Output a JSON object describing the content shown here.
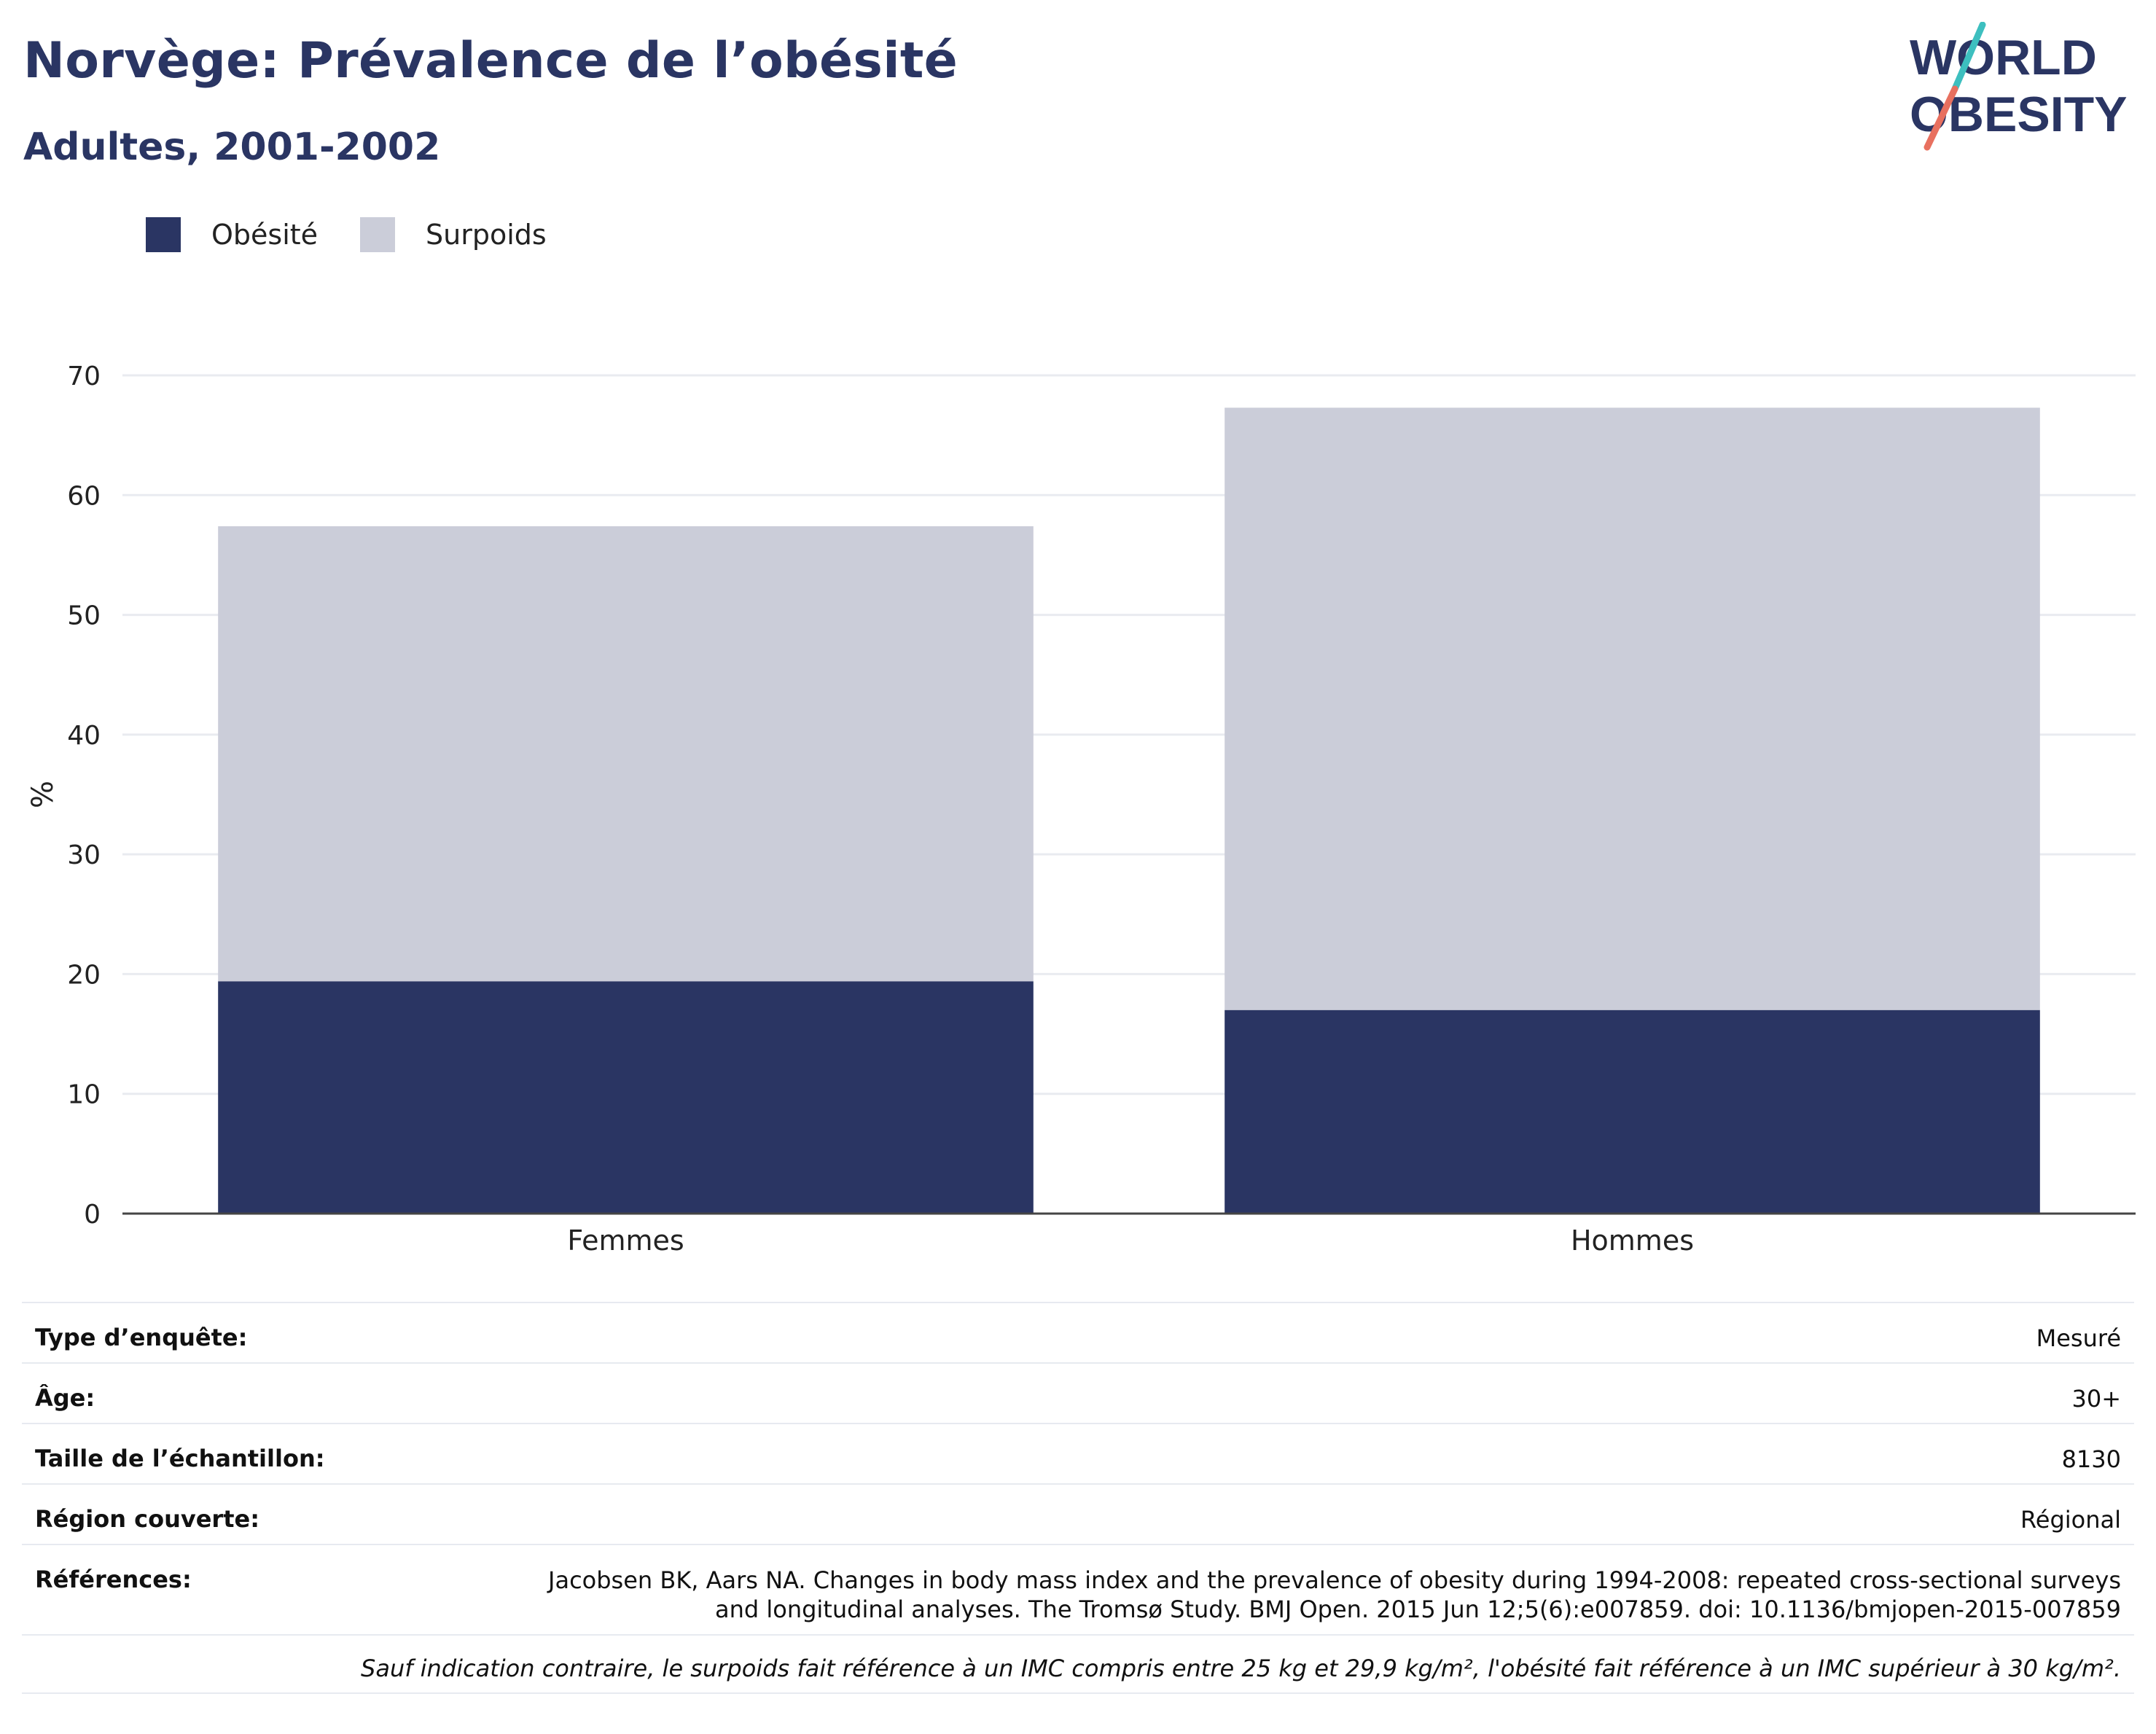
{
  "header": {
    "title": "Norvège: Prévalence de l’obésité",
    "subtitle": "Adultes, 2001-2002"
  },
  "logo": {
    "line1": "WORLD",
    "line2": "OBESITY",
    "colors": {
      "text": "#2a3563",
      "slash_top": "#3dbfbf",
      "slash_bottom": "#e8705f"
    }
  },
  "legend": [
    {
      "label": "Obésité",
      "color": "#2a3563"
    },
    {
      "label": "Surpoids",
      "color": "#cbcdd9"
    }
  ],
  "chart_data": {
    "type": "bar",
    "stacked": true,
    "categories": [
      "Femmes",
      "Hommes"
    ],
    "series": [
      {
        "name": "Obésité",
        "color": "#2a3563",
        "values": [
          19.4,
          17.0
        ]
      },
      {
        "name": "Surpoids",
        "color": "#cbcdd9",
        "values": [
          38.0,
          50.3
        ]
      }
    ],
    "ylabel": "%",
    "ylim": [
      0,
      70
    ],
    "yticks": [
      0,
      10,
      20,
      30,
      40,
      50,
      60,
      70
    ],
    "grid": true,
    "legend_position": "top-left"
  },
  "meta": {
    "rows": [
      {
        "label": "Type d’enquête:",
        "value": "Mesuré"
      },
      {
        "label": "Âge:",
        "value": "30+"
      },
      {
        "label": "Taille de l’échantillon:",
        "value": "8130"
      },
      {
        "label": "Région couverte:",
        "value": "Régional"
      }
    ],
    "references_label": "Références:",
    "references_line1": "Jacobsen BK, Aars NA. Changes in body mass index and the prevalence of obesity during 1994-2008: repeated cross-sectional surveys",
    "references_line2": "and longitudinal analyses. The Tromsø Study. BMJ Open. 2015 Jun 12;5(6):e007859. doi: 10.1136/bmjopen-2015-007859",
    "note": "Sauf indication contraire, le surpoids fait référence à un IMC compris entre 25 kg et 29,9 kg/m², l'obésité fait référence à un IMC supérieur à 30 kg/m²."
  }
}
